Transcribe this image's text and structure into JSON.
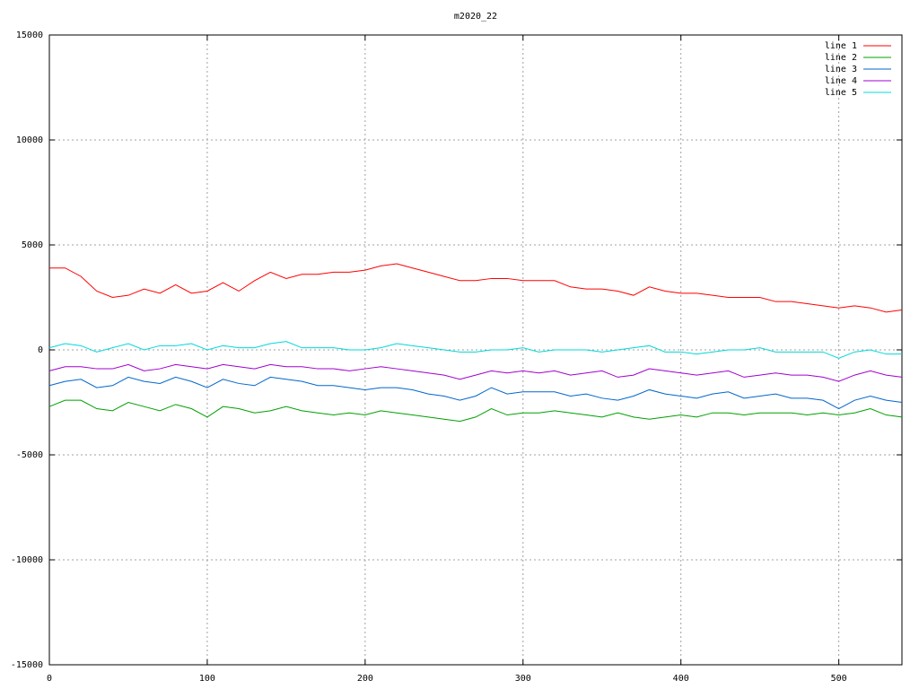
{
  "chart_data": {
    "type": "line",
    "title": "m2020_22",
    "x": [
      0,
      10,
      20,
      30,
      40,
      50,
      60,
      70,
      80,
      90,
      100,
      110,
      120,
      130,
      140,
      150,
      160,
      170,
      180,
      190,
      200,
      210,
      220,
      230,
      240,
      250,
      260,
      270,
      280,
      290,
      300,
      310,
      320,
      330,
      340,
      350,
      360,
      370,
      380,
      390,
      400,
      410,
      420,
      430,
      440,
      450,
      460,
      470,
      480,
      490,
      500,
      510,
      520,
      530,
      540
    ],
    "series": [
      {
        "name": "line 1",
        "color": "#ff0000",
        "values": [
          3900,
          3900,
          3500,
          2800,
          2500,
          2600,
          2900,
          2700,
          3100,
          2700,
          2800,
          3200,
          2800,
          3300,
          3700,
          3400,
          3600,
          3600,
          3700,
          3700,
          3800,
          4000,
          4100,
          3900,
          3700,
          3500,
          3300,
          3300,
          3400,
          3400,
          3300,
          3300,
          3300,
          3000,
          2900,
          2900,
          2800,
          2600,
          3000,
          2800,
          2700,
          2700,
          2600,
          2500,
          2500,
          2500,
          2300,
          2300,
          2200,
          2100,
          2000,
          2100,
          2000,
          1800,
          1900
        ]
      },
      {
        "name": "line 2",
        "color": "#00a000",
        "values": [
          -2700,
          -2400,
          -2400,
          -2800,
          -2900,
          -2500,
          -2700,
          -2900,
          -2600,
          -2800,
          -3200,
          -2700,
          -2800,
          -3000,
          -2900,
          -2700,
          -2900,
          -3000,
          -3100,
          -3000,
          -3100,
          -2900,
          -3000,
          -3100,
          -3200,
          -3300,
          -3400,
          -3200,
          -2800,
          -3100,
          -3000,
          -3000,
          -2900,
          -3000,
          -3100,
          -3200,
          -3000,
          -3200,
          -3300,
          -3200,
          -3100,
          -3200,
          -3000,
          -3000,
          -3100,
          -3000,
          -3000,
          -3000,
          -3100,
          -3000,
          -3100,
          -3000,
          -2800,
          -3100,
          -3200
        ]
      },
      {
        "name": "line 3",
        "color": "#0066cc",
        "values": [
          -1700,
          -1500,
          -1400,
          -1800,
          -1700,
          -1300,
          -1500,
          -1600,
          -1300,
          -1500,
          -1800,
          -1400,
          -1600,
          -1700,
          -1300,
          -1400,
          -1500,
          -1700,
          -1700,
          -1800,
          -1900,
          -1800,
          -1800,
          -1900,
          -2100,
          -2200,
          -2400,
          -2200,
          -1800,
          -2100,
          -2000,
          -2000,
          -2000,
          -2200,
          -2100,
          -2300,
          -2400,
          -2200,
          -1900,
          -2100,
          -2200,
          -2300,
          -2100,
          -2000,
          -2300,
          -2200,
          -2100,
          -2300,
          -2300,
          -2400,
          -2800,
          -2400,
          -2200,
          -2400,
          -2500
        ]
      },
      {
        "name": "line 4",
        "color": "#a000d0",
        "values": [
          -1000,
          -800,
          -800,
          -900,
          -900,
          -700,
          -1000,
          -900,
          -700,
          -800,
          -900,
          -700,
          -800,
          -900,
          -700,
          -800,
          -800,
          -900,
          -900,
          -1000,
          -900,
          -800,
          -900,
          -1000,
          -1100,
          -1200,
          -1400,
          -1200,
          -1000,
          -1100,
          -1000,
          -1100,
          -1000,
          -1200,
          -1100,
          -1000,
          -1300,
          -1200,
          -900,
          -1000,
          -1100,
          -1200,
          -1100,
          -1000,
          -1300,
          -1200,
          -1100,
          -1200,
          -1200,
          -1300,
          -1500,
          -1200,
          -1000,
          -1200,
          -1300
        ]
      },
      {
        "name": "line 5",
        "color": "#00d8d8",
        "values": [
          100,
          300,
          200,
          -100,
          100,
          300,
          0,
          200,
          200,
          300,
          0,
          200,
          100,
          100,
          300,
          400,
          100,
          100,
          100,
          0,
          0,
          100,
          300,
          200,
          100,
          0,
          -100,
          -100,
          0,
          0,
          100,
          -100,
          0,
          0,
          0,
          -100,
          0,
          100,
          200,
          -100,
          -100,
          -200,
          -100,
          0,
          0,
          100,
          -100,
          -100,
          -100,
          -100,
          -400,
          -100,
          0,
          -200,
          -200
        ]
      }
    ],
    "xlim": [
      0,
      540
    ],
    "xticks": [
      0,
      100,
      200,
      300,
      400,
      500
    ],
    "ylim": [
      -15000,
      15000
    ],
    "yticks": [
      -15000,
      -10000,
      -5000,
      0,
      5000,
      10000,
      15000
    ],
    "grid": true,
    "legend": "top-right"
  }
}
